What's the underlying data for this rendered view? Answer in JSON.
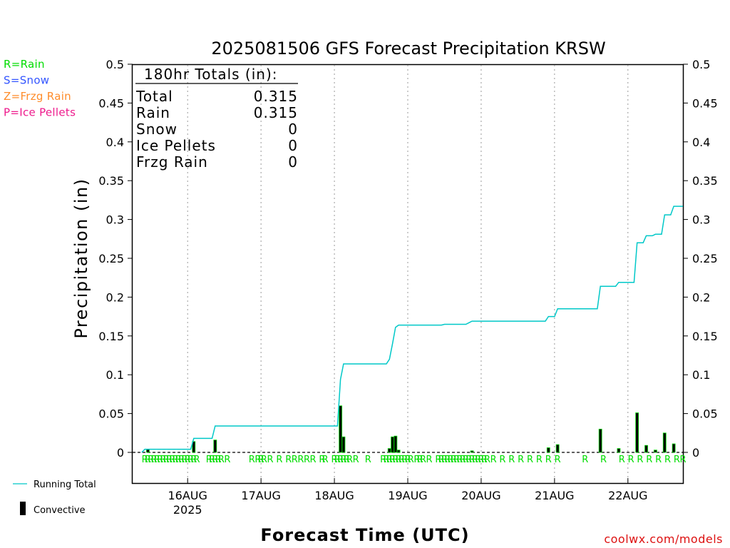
{
  "colors": {
    "rain": "#00dd00",
    "snow": "#3355ff",
    "frzg_rain": "#ff8c2a",
    "ice_pellets": "#ee1a8c",
    "running_total": "#00c8c8",
    "convective": "#000000",
    "credit": "#dd1111"
  },
  "legend_types": [
    {
      "label": "R=Rain",
      "color_key": "rain"
    },
    {
      "label": "S=Snow",
      "color_key": "snow"
    },
    {
      "label": "Z=Frzg Rain",
      "color_key": "frzg_rain"
    },
    {
      "label": "P=Ice Pellets",
      "color_key": "ice_pellets"
    }
  ],
  "legend_lines": {
    "running_total": "Running Total",
    "convective": "Convective"
  },
  "totals_box": {
    "header": "180hr Totals (in):",
    "rows": [
      {
        "label": "Total",
        "value": "0.315"
      },
      {
        "label": "Rain",
        "value": "0.315"
      },
      {
        "label": "Snow",
        "value": "0"
      },
      {
        "label": "Ice Pellets",
        "value": "0"
      },
      {
        "label": "Frzg Rain",
        "value": "0"
      }
    ]
  },
  "credit": "coolwx.com/models",
  "chart_data": {
    "type": "bar",
    "title": "2025081506 GFS Forecast Precipitation KRSW",
    "ylabel": "Precipitation (in)",
    "xlabel": "Forecast Time (UTC)",
    "ylim": [
      0,
      0.5
    ],
    "yticks": [
      "0",
      "0.05",
      "0.1",
      "0.15",
      "0.2",
      "0.25",
      "0.3",
      "0.35",
      "0.4",
      "0.45",
      "0.5"
    ],
    "x_unit": "forecast hour",
    "xlim": [
      0,
      180
    ],
    "x_ticks": [
      {
        "hour": 18,
        "label": "16AUG",
        "sublabel": "2025"
      },
      {
        "hour": 42,
        "label": "17AUG",
        "sublabel": ""
      },
      {
        "hour": 66,
        "label": "18AUG",
        "sublabel": ""
      },
      {
        "hour": 90,
        "label": "19AUG",
        "sublabel": ""
      },
      {
        "hour": 114,
        "label": "20AUG",
        "sublabel": ""
      },
      {
        "hour": 138,
        "label": "21AUG",
        "sublabel": ""
      },
      {
        "hour": 162,
        "label": "22AUG",
        "sublabel": ""
      }
    ],
    "grid": "vertical dotted at day boundaries",
    "precip_bars": [
      {
        "hour": 5,
        "value": 0.004
      },
      {
        "hour": 20,
        "value": 0.014
      },
      {
        "hour": 27,
        "value": 0.016
      },
      {
        "hour": 68,
        "value": 0.06
      },
      {
        "hour": 69,
        "value": 0.02
      },
      {
        "hour": 84,
        "value": 0.005
      },
      {
        "hour": 85,
        "value": 0.02
      },
      {
        "hour": 86,
        "value": 0.021
      },
      {
        "hour": 87,
        "value": 0.003
      },
      {
        "hour": 111,
        "value": 0.002
      },
      {
        "hour": 136,
        "value": 0.006
      },
      {
        "hour": 139,
        "value": 0.01
      },
      {
        "hour": 153,
        "value": 0.03
      },
      {
        "hour": 159,
        "value": 0.005
      },
      {
        "hour": 165,
        "value": 0.051
      },
      {
        "hour": 168,
        "value": 0.009
      },
      {
        "hour": 171,
        "value": 0.003
      },
      {
        "hour": 174,
        "value": 0.025
      },
      {
        "hour": 177,
        "value": 0.011
      }
    ],
    "running_total": {
      "name": "Running Total",
      "points": [
        [
          3,
          0.0
        ],
        [
          4,
          0.004
        ],
        [
          19,
          0.004
        ],
        [
          20,
          0.018
        ],
        [
          26,
          0.018
        ],
        [
          27,
          0.034
        ],
        [
          67,
          0.034
        ],
        [
          68,
          0.094
        ],
        [
          69,
          0.114
        ],
        [
          83,
          0.114
        ],
        [
          84,
          0.12
        ],
        [
          85,
          0.14
        ],
        [
          86,
          0.161
        ],
        [
          87,
          0.164
        ],
        [
          101,
          0.164
        ],
        [
          102,
          0.165
        ],
        [
          109,
          0.165
        ],
        [
          110,
          0.167
        ],
        [
          111,
          0.169
        ],
        [
          135,
          0.169
        ],
        [
          136,
          0.175
        ],
        [
          138,
          0.175
        ],
        [
          139,
          0.185
        ],
        [
          152,
          0.185
        ],
        [
          153,
          0.214
        ],
        [
          158,
          0.214
        ],
        [
          159,
          0.219
        ],
        [
          164,
          0.219
        ],
        [
          165,
          0.27
        ],
        [
          167,
          0.27
        ],
        [
          168,
          0.279
        ],
        [
          170,
          0.279
        ],
        [
          171,
          0.281
        ],
        [
          173,
          0.281
        ],
        [
          174,
          0.306
        ],
        [
          176,
          0.306
        ],
        [
          177,
          0.317
        ],
        [
          180,
          0.317
        ]
      ]
    },
    "precip_type_marks": {
      "symbol": "R",
      "hours": [
        4,
        5,
        6,
        7,
        8,
        9,
        10,
        11,
        12,
        13,
        14,
        15,
        16,
        17,
        18,
        19,
        20,
        21,
        25,
        26,
        27,
        28,
        29,
        31,
        39,
        41,
        42,
        43,
        45,
        48,
        51,
        53,
        55,
        57,
        59,
        62,
        63,
        66,
        67,
        68,
        69,
        70,
        71,
        73,
        77,
        82,
        83,
        84,
        85,
        86,
        87,
        88,
        89,
        90,
        91,
        93,
        94,
        95,
        97,
        100,
        101,
        102,
        103,
        104,
        105,
        106,
        107,
        108,
        109,
        110,
        111,
        112,
        113,
        114,
        115,
        116,
        118,
        121,
        124,
        127,
        130,
        133,
        136,
        139,
        148,
        154,
        160,
        163,
        166,
        169,
        172,
        175,
        178,
        180
      ]
    }
  }
}
